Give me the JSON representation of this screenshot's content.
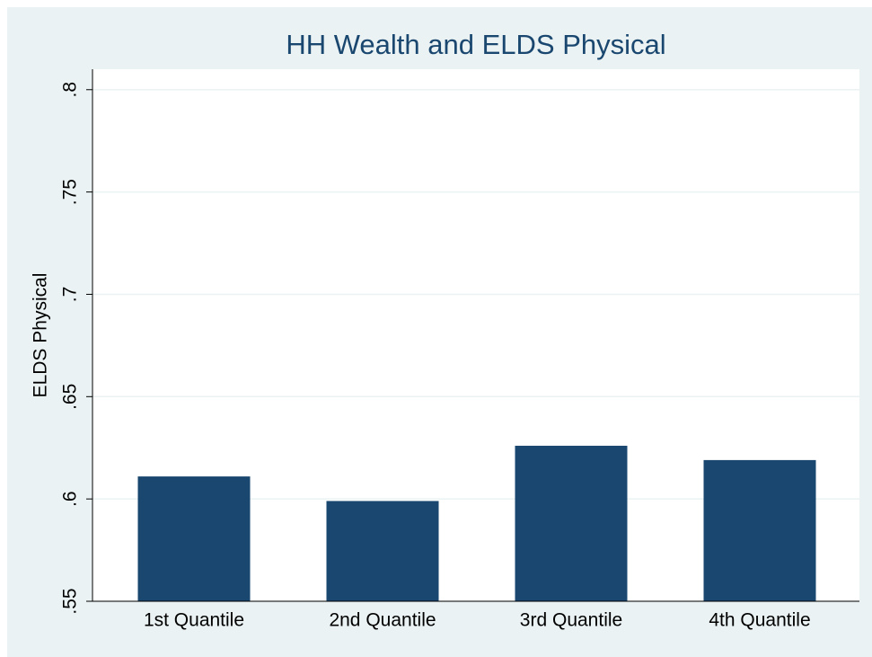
{
  "chart_data": {
    "type": "bar",
    "title": "HH Wealth and ELDS Physical",
    "y_label": "ELDS Physical",
    "categories": [
      "1st Quantile",
      "2nd Quantile",
      "3rd Quantile",
      "4th Quantile"
    ],
    "values": [
      0.611,
      0.599,
      0.626,
      0.619
    ],
    "color": "#1a476f",
    "ylim": [
      0.55,
      0.81
    ],
    "yticks": [
      {
        "value": 0.55,
        "label": ".55"
      },
      {
        "value": 0.6,
        "label": ".6"
      },
      {
        "value": 0.65,
        "label": ".65"
      },
      {
        "value": 0.7,
        "label": ".7"
      },
      {
        "value": 0.75,
        "label": ".75"
      },
      {
        "value": 0.8,
        "label": ".8"
      }
    ],
    "grid": true
  }
}
